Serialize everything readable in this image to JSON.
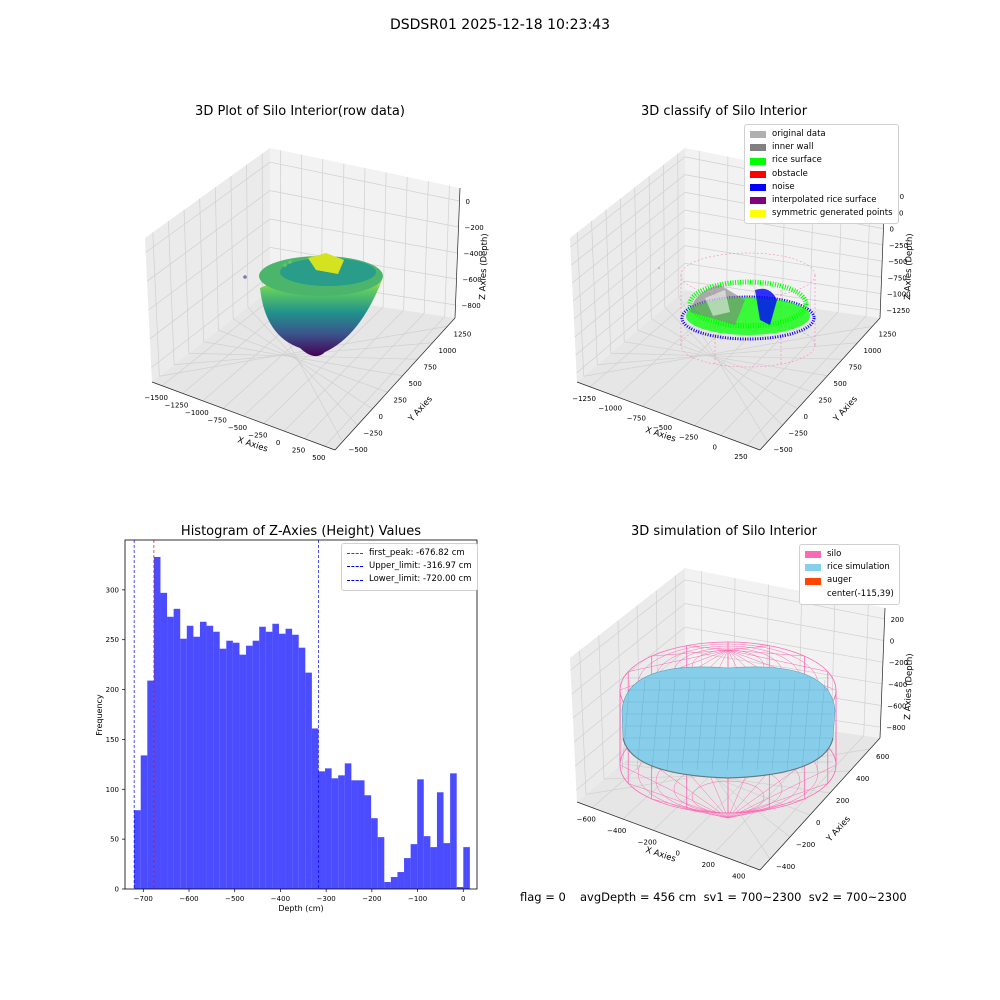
{
  "suptitle": "DSDSR01 2025-12-18 10:23:43",
  "colors": {
    "bar": "#0000ff",
    "peak": "#ff0000",
    "limit": "#0000ff",
    "pane": "#f2f2f2",
    "grid": "#d0d0d0",
    "silo": "#ff69b4",
    "rice": "#87ceeb",
    "auger": "#ff4500"
  },
  "panels": {
    "raw": {
      "title": "3D Plot of Silo Interior(row data)",
      "xlabel": "X Axies",
      "ylabel": "Y Axies",
      "zlabel": "Z Axies (Depth)",
      "xticks": [
        "−1500",
        "−1250",
        "−1000",
        "−750",
        "−500",
        "−250",
        "0",
        "250",
        "500"
      ],
      "yticks": [
        "−500",
        "−250",
        "0",
        "250",
        "500",
        "750",
        "1000",
        "1250"
      ],
      "zticks": [
        "0",
        "−200",
        "−400",
        "−600",
        "−800"
      ],
      "colormap": "viridis"
    },
    "classify": {
      "title": "3D classify of Silo Interior",
      "xlabel": "X Axies",
      "ylabel": "Y Axies",
      "zlabel": "Z Axies (Depth)",
      "xticks": [
        "−1250",
        "−1000",
        "−750",
        "−500",
        "−250",
        "0",
        "250"
      ],
      "yticks": [
        "−500",
        "−250",
        "0",
        "250",
        "500",
        "750",
        "1000",
        "1250"
      ],
      "zticks": [
        "500",
        "250",
        "0",
        "−250",
        "−500",
        "−750",
        "−1000",
        "−1250"
      ],
      "legend": [
        {
          "label": "original data",
          "color": "#b0b0b0"
        },
        {
          "label": "inner wall",
          "color": "#808080"
        },
        {
          "label": "rice surface",
          "color": "#00ff00"
        },
        {
          "label": "obstacle",
          "color": "#ff0000"
        },
        {
          "label": "noise",
          "color": "#0000ff"
        },
        {
          "label": "interpolated rice surface",
          "color": "#800080"
        },
        {
          "label": "symmetric generated points",
          "color": "#ffff00"
        }
      ]
    },
    "histogram": {
      "title": "Histogram of Z-Axies (Height) Values",
      "xlabel": "Depth (cm)",
      "ylabel": "Frequency",
      "xticks": [
        "−700",
        "−600",
        "−500",
        "−400",
        "−300",
        "−200",
        "−100",
        "0"
      ],
      "yticks": [
        "0",
        "50",
        "100",
        "150",
        "200",
        "250",
        "300"
      ],
      "legend": [
        {
          "label": "first_peak: -676.82 cm",
          "color": "#ff0000"
        },
        {
          "label": "Upper_limit: -316.97 cm",
          "color": "#0000ff"
        },
        {
          "label": "Lower_limit: -720.00 cm",
          "color": "#0000ff"
        }
      ]
    },
    "simulation": {
      "title": "3D simulation of Silo Interior",
      "xlabel": "X Axies",
      "ylabel": "Y Axies",
      "zlabel": "Z Axies (Depth)",
      "xticks": [
        "−600",
        "−400",
        "−200",
        "0",
        "200",
        "400"
      ],
      "yticks": [
        "−400",
        "−200",
        "0",
        "200",
        "400",
        "600"
      ],
      "zticks": [
        "200",
        "0",
        "−200",
        "−400",
        "−600",
        "−800"
      ],
      "legend": [
        {
          "label": "silo",
          "color": "#ff69b4"
        },
        {
          "label": "rice simulation",
          "color": "#87ceeb"
        },
        {
          "label": "auger",
          "color": "#ff4500"
        },
        {
          "label": "center(-115,39)",
          "color": ""
        }
      ]
    }
  },
  "footer": {
    "flag": "flag = 0",
    "avg": "avgDepth = 456 cm  sv1 = 700~2300  sv2 = 700~2300"
  },
  "chart_data": [
    {
      "type": "bar",
      "title": "Histogram of Z-Axies (Height) Values",
      "xlabel": "Depth (cm)",
      "ylabel": "Frequency",
      "xlim": [
        -740,
        30
      ],
      "ylim": [
        0,
        350
      ],
      "bin_width": 14.4,
      "bin_start": -720,
      "values": [
        79,
        134,
        209,
        333,
        297,
        273,
        281,
        251,
        264,
        253,
        268,
        264,
        258,
        241,
        249,
        247,
        235,
        244,
        249,
        263,
        258,
        266,
        256,
        261,
        255,
        242,
        217,
        161,
        118,
        121,
        111,
        114,
        126,
        109,
        109,
        94,
        71,
        52,
        7,
        12,
        17,
        31,
        45,
        110,
        53,
        42,
        97,
        46,
        116,
        2,
        42
      ],
      "markers": [
        {
          "name": "first_peak",
          "value": -676.82
        },
        {
          "name": "Upper_limit",
          "value": -316.97
        },
        {
          "name": "Lower_limit",
          "value": -720.0
        }
      ]
    },
    {
      "type": "scatter",
      "title": "3D Plot of Silo Interior(row data)",
      "xlabel": "X Axies",
      "ylabel": "Y Axies",
      "zlabel": "Z Axies (Depth)",
      "xlim": [
        -1500,
        500
      ],
      "ylim": [
        -500,
        1250
      ],
      "zlim": [
        -850,
        0
      ]
    },
    {
      "type": "scatter",
      "title": "3D classify of Silo Interior",
      "xlabel": "X Axies",
      "ylabel": "Y Axies",
      "zlabel": "Z Axies (Depth)",
      "xlim": [
        -1250,
        250
      ],
      "ylim": [
        -500,
        1250
      ],
      "zlim": [
        -1250,
        500
      ]
    },
    {
      "type": "area",
      "title": "3D simulation of Silo Interior",
      "xlabel": "X Axies",
      "ylabel": "Y Axies",
      "zlabel": "Z Axies (Depth)",
      "xlim": [
        -600,
        400
      ],
      "ylim": [
        -400,
        600
      ],
      "zlim": [
        -800,
        200
      ]
    }
  ]
}
